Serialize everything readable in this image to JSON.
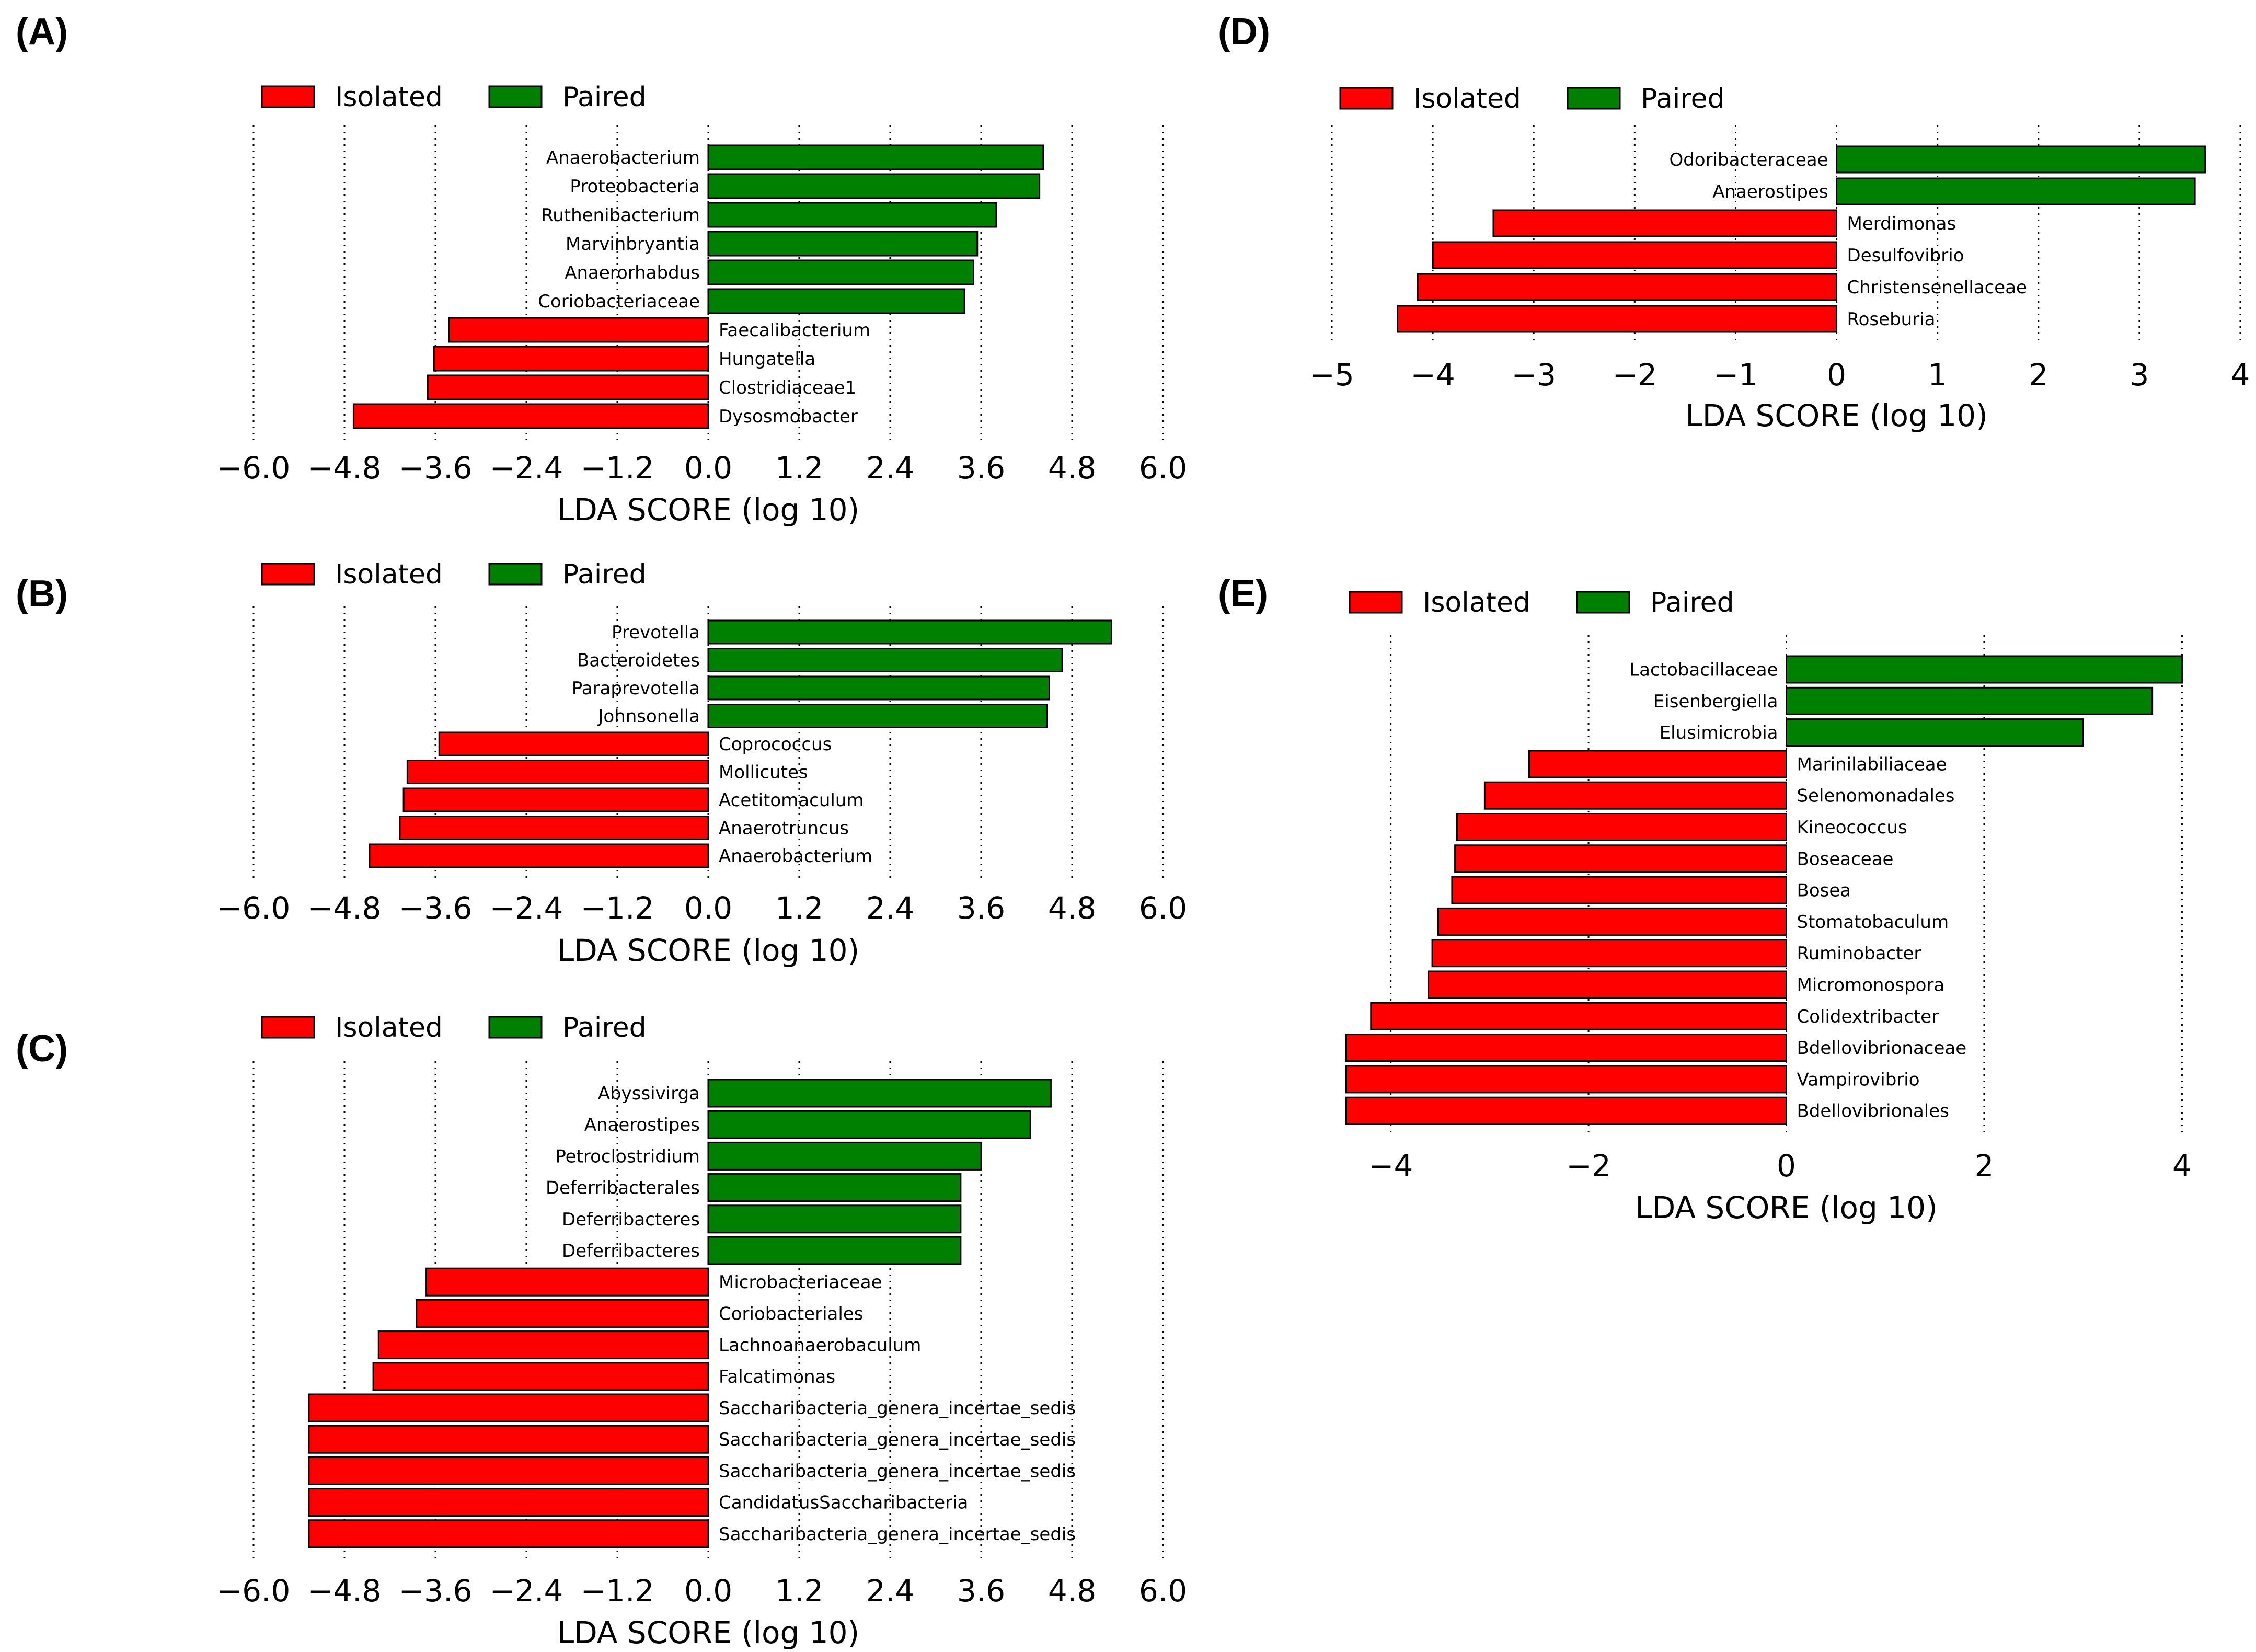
{
  "colors": {
    "isolated": "#ff0000",
    "paired": "#008000",
    "edge": "#000000"
  },
  "chart_data": [
    {
      "id": "A",
      "panel_label": "(A)",
      "type": "bar",
      "orientation": "horizontal",
      "legend": [
        "Isolated",
        "Paired"
      ],
      "legend_position": "top-left",
      "xlabel": "LDA SCORE (log 10)",
      "xlim": [
        -6.0,
        6.0
      ],
      "xticks": [
        -6.0,
        -4.8,
        -3.6,
        -2.4,
        -1.2,
        0.0,
        1.2,
        2.4,
        3.6,
        4.8,
        6.0
      ],
      "xtick_labels": [
        "−6.0",
        "−4.8",
        "−3.6",
        "−2.4",
        "−1.2",
        "0.0",
        "1.2",
        "2.4",
        "3.6",
        "4.8",
        "6.0"
      ],
      "grid": "vertical dotted",
      "bars": [
        {
          "label": "Anaerobacterium",
          "value": 4.42,
          "group": "Paired"
        },
        {
          "label": "Proteobacteria",
          "value": 4.37,
          "group": "Paired"
        },
        {
          "label": "Ruthenibacterium",
          "value": 3.8,
          "group": "Paired"
        },
        {
          "label": "Marvinbryantia",
          "value": 3.55,
          "group": "Paired"
        },
        {
          "label": "Anaerorhabdus",
          "value": 3.5,
          "group": "Paired"
        },
        {
          "label": "Coriobacteriaceae",
          "value": 3.38,
          "group": "Paired"
        },
        {
          "label": "Faecalibacterium",
          "value": -3.42,
          "group": "Isolated"
        },
        {
          "label": "Hungatella",
          "value": -3.62,
          "group": "Isolated"
        },
        {
          "label": "Clostridiaceae1",
          "value": -3.7,
          "group": "Isolated"
        },
        {
          "label": "Dysosmobacter",
          "value": -4.68,
          "group": "Isolated"
        }
      ]
    },
    {
      "id": "B",
      "panel_label": "(B)",
      "type": "bar",
      "orientation": "horizontal",
      "legend": [
        "Isolated",
        "Paired"
      ],
      "legend_position": "top-left",
      "xlabel": "LDA SCORE (log 10)",
      "xlim": [
        -6.0,
        6.0
      ],
      "xticks": [
        -6.0,
        -4.8,
        -3.6,
        -2.4,
        -1.2,
        0.0,
        1.2,
        2.4,
        3.6,
        4.8,
        6.0
      ],
      "xtick_labels": [
        "−6.0",
        "−4.8",
        "−3.6",
        "−2.4",
        "−1.2",
        "0.0",
        "1.2",
        "2.4",
        "3.6",
        "4.8",
        "6.0"
      ],
      "grid": "vertical dotted",
      "bars": [
        {
          "label": "Prevotella",
          "value": 5.32,
          "group": "Paired"
        },
        {
          "label": "Bacteroidetes",
          "value": 4.67,
          "group": "Paired"
        },
        {
          "label": "Paraprevotella",
          "value": 4.5,
          "group": "Paired"
        },
        {
          "label": "Johnsonella",
          "value": 4.47,
          "group": "Paired"
        },
        {
          "label": "Coprococcus",
          "value": -3.55,
          "group": "Isolated"
        },
        {
          "label": "Mollicutes",
          "value": -3.97,
          "group": "Isolated"
        },
        {
          "label": "Acetitomaculum",
          "value": -4.02,
          "group": "Isolated"
        },
        {
          "label": "Anaerotruncus",
          "value": -4.07,
          "group": "Isolated"
        },
        {
          "label": "Anaerobacterium",
          "value": -4.47,
          "group": "Isolated"
        }
      ]
    },
    {
      "id": "C",
      "panel_label": "(C)",
      "type": "bar",
      "orientation": "horizontal",
      "legend": [
        "Isolated",
        "Paired"
      ],
      "legend_position": "top-left",
      "xlabel": "LDA SCORE (log 10)",
      "xlim": [
        -6.0,
        6.0
      ],
      "xticks": [
        -6.0,
        -4.8,
        -3.6,
        -2.4,
        -1.2,
        0.0,
        1.2,
        2.4,
        3.6,
        4.8,
        6.0
      ],
      "xtick_labels": [
        "−6.0",
        "−4.8",
        "−3.6",
        "−2.4",
        "−1.2",
        "0.0",
        "1.2",
        "2.4",
        "3.6",
        "4.8",
        "6.0"
      ],
      "grid": "vertical dotted",
      "bars": [
        {
          "label": "Abyssivirga",
          "value": 4.52,
          "group": "Paired"
        },
        {
          "label": "Anaerostipes",
          "value": 4.25,
          "group": "Paired"
        },
        {
          "label": "Petroclostridium",
          "value": 3.6,
          "group": "Paired"
        },
        {
          "label": "Deferribacterales",
          "value": 3.33,
          "group": "Paired"
        },
        {
          "label": "Deferribacteres",
          "value": 3.33,
          "group": "Paired"
        },
        {
          "label": "Deferribacteres",
          "value": 3.33,
          "group": "Paired"
        },
        {
          "label": "Microbacteriaceae",
          "value": -3.72,
          "group": "Isolated"
        },
        {
          "label": "Coriobacteriales",
          "value": -3.85,
          "group": "Isolated"
        },
        {
          "label": "Lachnoanaerobaculum",
          "value": -4.35,
          "group": "Isolated"
        },
        {
          "label": "Falcatimonas",
          "value": -4.42,
          "group": "Isolated"
        },
        {
          "label": "Saccharibacteria_genera_incertae_sedis",
          "value": -5.27,
          "group": "Isolated"
        },
        {
          "label": "Saccharibacteria_genera_incertae_sedis",
          "value": -5.27,
          "group": "Isolated"
        },
        {
          "label": "Saccharibacteria_genera_incertae_sedis",
          "value": -5.27,
          "group": "Isolated"
        },
        {
          "label": "CandidatusSaccharibacteria",
          "value": -5.27,
          "group": "Isolated"
        },
        {
          "label": "Saccharibacteria_genera_incertae_sedis",
          "value": -5.27,
          "group": "Isolated"
        }
      ]
    },
    {
      "id": "D",
      "panel_label": "(D)",
      "type": "bar",
      "orientation": "horizontal",
      "legend": [
        "Isolated",
        "Paired"
      ],
      "legend_position": "top-left",
      "xlabel": "LDA SCORE (log 10)",
      "xlim": [
        -5,
        4
      ],
      "xticks": [
        -5,
        -4,
        -3,
        -2,
        -1,
        0,
        1,
        2,
        3,
        4
      ],
      "xtick_labels": [
        "−5",
        "−4",
        "−3",
        "−2",
        "−1",
        "0",
        "1",
        "2",
        "3",
        "4"
      ],
      "grid": "vertical dotted",
      "bars": [
        {
          "label": "Odoribacteraceae",
          "value": 3.65,
          "group": "Paired"
        },
        {
          "label": "Anaerostipes",
          "value": 3.55,
          "group": "Paired"
        },
        {
          "label": "Merdimonas",
          "value": -3.4,
          "group": "Isolated"
        },
        {
          "label": "Desulfovibrio",
          "value": -4.0,
          "group": "Isolated"
        },
        {
          "label": "Christensenellaceae",
          "value": -4.15,
          "group": "Isolated"
        },
        {
          "label": "Roseburia",
          "value": -4.35,
          "group": "Isolated"
        }
      ]
    },
    {
      "id": "E",
      "panel_label": "(E)",
      "type": "bar",
      "orientation": "horizontal",
      "legend": [
        "Isolated",
        "Paired"
      ],
      "legend_position": "top-left",
      "xlabel": "LDA SCORE (log 10)",
      "xlim": [
        -4.5,
        4.5
      ],
      "xticks": [
        -4,
        -2,
        0,
        2,
        4
      ],
      "xtick_labels": [
        "−4",
        "−2",
        "0",
        "2",
        "4"
      ],
      "grid": "vertical dotted",
      "bars": [
        {
          "label": "Lactobacillaceae",
          "value": 4.0,
          "group": "Paired"
        },
        {
          "label": "Eisenbergiella",
          "value": 3.7,
          "group": "Paired"
        },
        {
          "label": "Elusimicrobia",
          "value": 3.0,
          "group": "Paired"
        },
        {
          "label": "Marinilabiliaceae",
          "value": -2.6,
          "group": "Isolated"
        },
        {
          "label": "Selenomonadales",
          "value": -3.05,
          "group": "Isolated"
        },
        {
          "label": "Kineococcus",
          "value": -3.33,
          "group": "Isolated"
        },
        {
          "label": "Boseaceae",
          "value": -3.35,
          "group": "Isolated"
        },
        {
          "label": "Bosea",
          "value": -3.38,
          "group": "Isolated"
        },
        {
          "label": "Stomatobaculum",
          "value": -3.52,
          "group": "Isolated"
        },
        {
          "label": "Ruminobacter",
          "value": -3.58,
          "group": "Isolated"
        },
        {
          "label": "Micromonospora",
          "value": -3.62,
          "group": "Isolated"
        },
        {
          "label": "Colidextribacter",
          "value": -4.2,
          "group": "Isolated"
        },
        {
          "label": "Bdellovibrionaceae",
          "value": -4.45,
          "group": "Isolated"
        },
        {
          "label": "Vampirovibrio",
          "value": -4.45,
          "group": "Isolated"
        },
        {
          "label": "Bdellovibrionales",
          "value": -4.45,
          "group": "Isolated"
        }
      ]
    }
  ]
}
